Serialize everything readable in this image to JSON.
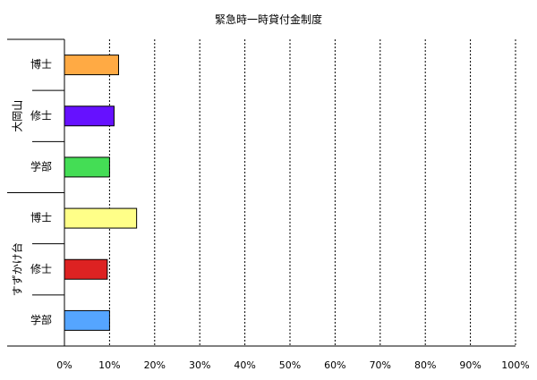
{
  "chart_data": {
    "type": "bar",
    "orientation": "horizontal",
    "title": "緊急時一時貸付金制度",
    "xlim": [
      0,
      100
    ],
    "x_ticks": [
      "0%",
      "10%",
      "20%",
      "30%",
      "40%",
      "50%",
      "60%",
      "70%",
      "80%",
      "90%",
      "100%"
    ],
    "grid": "vertical-dotted",
    "groups": [
      {
        "name": "大岡山",
        "categories": [
          "博士",
          "修士",
          "学部"
        ],
        "values": [
          12,
          11,
          10
        ],
        "colors": [
          "#ffaa44",
          "#6611ff",
          "#44dd55"
        ]
      },
      {
        "name": "すずかけ台",
        "categories": [
          "博士",
          "修士",
          "学部"
        ],
        "values": [
          16,
          9.5,
          10
        ],
        "colors": [
          "#ffff88",
          "#dd2222",
          "#55a5ff"
        ]
      }
    ]
  }
}
